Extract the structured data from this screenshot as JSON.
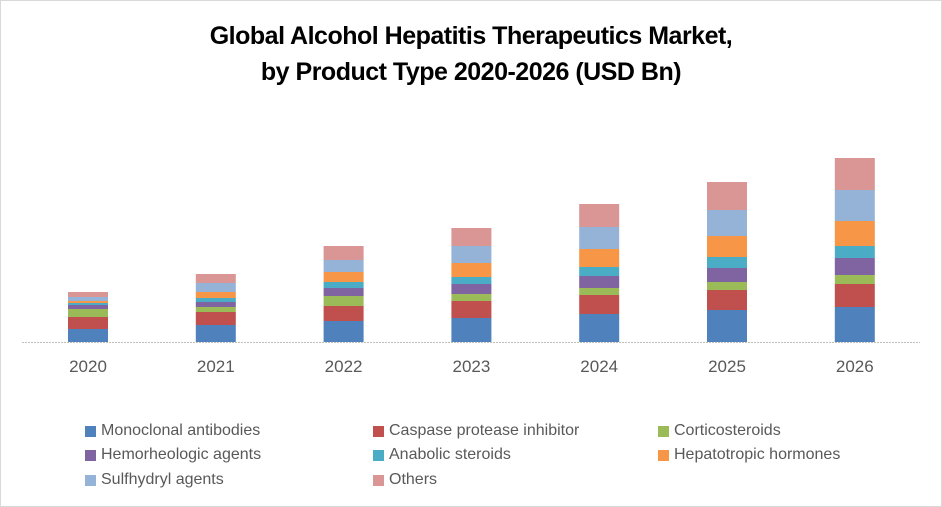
{
  "chart_data": {
    "type": "bar",
    "stacked": true,
    "title": "Global Alcohol Hepatitis Therapeutics Market,",
    "subtitle": "by Product Type 2020-2026 (USD Bn)",
    "xlabel": "",
    "ylabel": "USD Bn",
    "ylim": [
      0,
      20
    ],
    "grid": false,
    "legend_position": "bottom",
    "categories": [
      "2020",
      "2021",
      "2022",
      "2023",
      "2024",
      "2025",
      "2026"
    ],
    "series": [
      {
        "name": "Monoclonal antibodies",
        "color": "#4f81bd",
        "values": [
          1.3,
          1.7,
          2.1,
          2.4,
          2.8,
          3.2,
          3.5
        ]
      },
      {
        "name": "Caspase protease inhibitor",
        "color": "#c0504d",
        "values": [
          1.2,
          1.3,
          1.5,
          1.7,
          1.9,
          2.0,
          2.3
        ]
      },
      {
        "name": "Corticosteroids",
        "color": "#9bbb59",
        "values": [
          0.8,
          0.5,
          1.0,
          0.7,
          0.7,
          0.8,
          0.9
        ]
      },
      {
        "name": "Hemorheologic agents",
        "color": "#8064a2",
        "values": [
          0.4,
          0.5,
          0.8,
          1.0,
          1.2,
          1.4,
          1.7
        ]
      },
      {
        "name": "Anabolic steroids",
        "color": "#4bacc6",
        "values": [
          0.2,
          0.4,
          0.6,
          0.7,
          0.9,
          1.1,
          1.2
        ]
      },
      {
        "name": "Hepatotropic hormones",
        "color": "#f79646",
        "values": [
          0.2,
          0.6,
          1.0,
          1.4,
          1.8,
          2.1,
          2.5
        ]
      },
      {
        "name": "Sulfhydryl agents",
        "color": "#95b3d7",
        "values": [
          0.4,
          0.9,
          1.2,
          1.7,
          2.2,
          2.6,
          3.1
        ]
      },
      {
        "name": "Others",
        "color": "#da9694",
        "values": [
          0.5,
          0.9,
          1.4,
          1.8,
          2.3,
          2.8,
          3.2
        ]
      }
    ]
  }
}
